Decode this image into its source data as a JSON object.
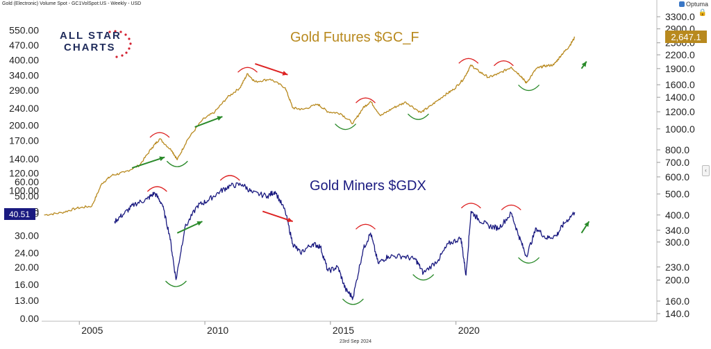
{
  "header": {
    "description": "Gold (Electronic) Volume Spot - GC1VolSpot:US - Weekly - USD",
    "brand": "Optuma"
  },
  "logo": {
    "line1": "ALL STAR",
    "line2": "CHARTS"
  },
  "footer": {
    "date": "23rd Sep 2024"
  },
  "chart_data": {
    "type": "line",
    "x_axis": {
      "ticks": [
        "2005",
        "2010",
        "2015",
        "2020"
      ],
      "tick_years": [
        2005,
        2010,
        2015,
        2020
      ],
      "range": [
        2003.5,
        2028.0
      ]
    },
    "left_axis": {
      "scale": "log-like",
      "ticks": [
        "550.00",
        "470.00",
        "400.00",
        "340.00",
        "290.00",
        "240.00",
        "200.00",
        "170.00",
        "140.00",
        "120.00",
        "100.00",
        "80.00",
        "60.00",
        "50.00",
        "40.00",
        "30.00",
        "24.00",
        "20.00",
        "16.00",
        "13.00",
        "0.00"
      ]
    },
    "right_axis": {
      "scale": "log",
      "ticks": [
        "3300.0",
        "2900.0",
        "2500.0",
        "2200.0",
        "1900.0",
        "1600.0",
        "1400.0",
        "1200.0",
        "1000.0",
        "800.0",
        "700.0",
        "600.0",
        "500.0",
        "400.0",
        "340.0",
        "300.0",
        "230.0",
        "200.0",
        "160.0",
        "140.0"
      ]
    },
    "series": [
      {
        "name": "Gold Futures $GC_F",
        "color": "#b8891e",
        "last_value_label": "2,647.1",
        "points": [
          [
            2003.6,
            400
          ],
          [
            2004.3,
            410
          ],
          [
            2004.9,
            430
          ],
          [
            2005.5,
            440
          ],
          [
            2005.9,
            560
          ],
          [
            2006.3,
            610
          ],
          [
            2006.8,
            630
          ],
          [
            2007.4,
            680
          ],
          [
            2007.9,
            820
          ],
          [
            2008.2,
            900
          ],
          [
            2008.7,
            790
          ],
          [
            2008.9,
            720
          ],
          [
            2009.3,
            890
          ],
          [
            2009.9,
            1100
          ],
          [
            2010.4,
            1200
          ],
          [
            2010.9,
            1400
          ],
          [
            2011.4,
            1550
          ],
          [
            2011.7,
            1800
          ],
          [
            2012.0,
            1650
          ],
          [
            2012.6,
            1700
          ],
          [
            2013.2,
            1550
          ],
          [
            2013.5,
            1250
          ],
          [
            2013.9,
            1230
          ],
          [
            2014.5,
            1300
          ],
          [
            2014.9,
            1200
          ],
          [
            2015.4,
            1180
          ],
          [
            2015.9,
            1060
          ],
          [
            2016.3,
            1250
          ],
          [
            2016.6,
            1340
          ],
          [
            2017.0,
            1150
          ],
          [
            2017.5,
            1250
          ],
          [
            2018.0,
            1330
          ],
          [
            2018.6,
            1190
          ],
          [
            2019.0,
            1280
          ],
          [
            2019.5,
            1420
          ],
          [
            2019.9,
            1520
          ],
          [
            2020.3,
            1700
          ],
          [
            2020.6,
            1970
          ],
          [
            2020.9,
            1850
          ],
          [
            2021.3,
            1730
          ],
          [
            2021.7,
            1800
          ],
          [
            2022.2,
            1930
          ],
          [
            2022.6,
            1750
          ],
          [
            2022.8,
            1630
          ],
          [
            2023.2,
            1900
          ],
          [
            2023.5,
            1950
          ],
          [
            2023.9,
            1980
          ],
          [
            2024.2,
            2200
          ],
          [
            2024.5,
            2400
          ],
          [
            2024.73,
            2647.1
          ]
        ]
      },
      {
        "name": "Gold Miners $GDX",
        "color": "#1a1a80",
        "last_value_label": "40.51",
        "points": [
          [
            2006.4,
            36
          ],
          [
            2006.8,
            40
          ],
          [
            2007.2,
            45
          ],
          [
            2007.7,
            48
          ],
          [
            2008.0,
            52
          ],
          [
            2008.3,
            45
          ],
          [
            2008.6,
            30
          ],
          [
            2008.85,
            17
          ],
          [
            2009.2,
            33
          ],
          [
            2009.7,
            44
          ],
          [
            2010.1,
            47
          ],
          [
            2010.6,
            53
          ],
          [
            2011.0,
            57
          ],
          [
            2011.5,
            58
          ],
          [
            2011.9,
            52
          ],
          [
            2012.5,
            50
          ],
          [
            2012.8,
            53
          ],
          [
            2013.2,
            41
          ],
          [
            2013.5,
            27
          ],
          [
            2013.8,
            24
          ],
          [
            2014.3,
            27
          ],
          [
            2014.6,
            26
          ],
          [
            2014.9,
            19
          ],
          [
            2015.3,
            20
          ],
          [
            2015.6,
            15
          ],
          [
            2015.9,
            13.5
          ],
          [
            2016.3,
            25
          ],
          [
            2016.6,
            31
          ],
          [
            2016.9,
            21
          ],
          [
            2017.3,
            23
          ],
          [
            2017.9,
            23
          ],
          [
            2018.4,
            22
          ],
          [
            2018.7,
            18.5
          ],
          [
            2019.3,
            22
          ],
          [
            2019.7,
            27
          ],
          [
            2020.2,
            29
          ],
          [
            2020.4,
            18
          ],
          [
            2020.6,
            41
          ],
          [
            2020.9,
            37
          ],
          [
            2021.3,
            34
          ],
          [
            2021.7,
            33
          ],
          [
            2022.2,
            40
          ],
          [
            2022.5,
            30
          ],
          [
            2022.8,
            23
          ],
          [
            2023.2,
            33
          ],
          [
            2023.6,
            29
          ],
          [
            2024.0,
            30
          ],
          [
            2024.3,
            35
          ],
          [
            2024.73,
            40.51
          ]
        ]
      }
    ],
    "annotations": [
      {
        "text": "Gold Futures $GC_F",
        "color": "#b8891e"
      },
      {
        "text": "Gold Miners $GDX",
        "color": "#1a1a80"
      }
    ],
    "arcs_top": [
      [
        2008.2,
        900
      ],
      [
        2011.7,
        1800
      ],
      [
        2016.4,
        1300
      ],
      [
        2020.5,
        1980
      ],
      [
        2021.9,
        1930
      ],
      [
        2008.1,
        52
      ],
      [
        2011.0,
        60
      ],
      [
        2016.4,
        32
      ],
      [
        2020.6,
        42
      ],
      [
        2022.2,
        41
      ]
    ],
    "arcs_bottom": [
      [
        2008.9,
        720
      ],
      [
        2015.6,
        1070
      ],
      [
        2018.5,
        1190
      ],
      [
        2022.9,
        1620
      ],
      [
        2008.85,
        17
      ],
      [
        2015.9,
        13.5
      ],
      [
        2018.7,
        18.5
      ],
      [
        2022.9,
        23
      ]
    ],
    "arrows": [
      {
        "from": [
          2007.1,
          660
        ],
        "to": [
          2008.4,
          740
        ],
        "color": "#2a8a2a"
      },
      {
        "from": [
          2009.6,
          1020
        ],
        "to": [
          2010.7,
          1140
        ],
        "color": "#2a8a2a"
      },
      {
        "from": [
          2012.0,
          2000
        ],
        "to": [
          2013.3,
          1780
        ],
        "color": "#dd2222"
      },
      {
        "from": [
          2025.0,
          1900
        ],
        "to": [
          2025.2,
          2050
        ],
        "color": "#2a8a2a"
      },
      {
        "from": [
          2012.3,
          41
        ],
        "to": [
          2013.5,
          36
        ],
        "color": "#dd2222"
      },
      {
        "from": [
          2008.9,
          31
        ],
        "to": [
          2009.9,
          36
        ],
        "color": "#2a8a2a"
      },
      {
        "from": [
          2025.0,
          31
        ],
        "to": [
          2025.3,
          36
        ],
        "color": "#2a8a2a"
      }
    ]
  }
}
